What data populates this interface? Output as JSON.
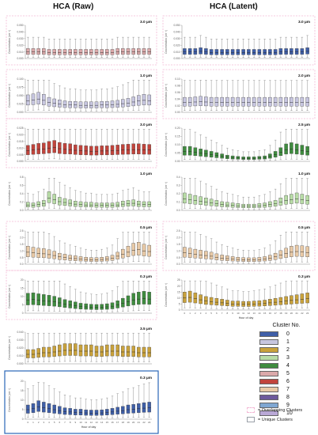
{
  "titles": {
    "left": "HCA (Raw)",
    "right": "HCA (Latent)"
  },
  "legend": {
    "title": "Cluster No.",
    "items": [
      {
        "label": "0",
        "color": "#3f5fa8"
      },
      {
        "label": "1",
        "color": "#c7c6e0"
      },
      {
        "label": "2",
        "color": "#c9a23c"
      },
      {
        "label": "3",
        "color": "#b8dca6"
      },
      {
        "label": "4",
        "color": "#3f8c3f"
      },
      {
        "label": "5",
        "color": "#dba9aa"
      },
      {
        "label": "6",
        "color": "#c1443c"
      },
      {
        "label": "7",
        "color": "#e8c9a6"
      },
      {
        "label": "8",
        "color": "#6d5a9c"
      },
      {
        "label": "9",
        "color": "#7fa7d2"
      },
      {
        "label": "10",
        "color": "#b9a8d6"
      }
    ]
  },
  "key": {
    "overlapping": "= Overlapping Clusters",
    "unique": "= Unique Clusters"
  },
  "chart_data": [
    {
      "type": "box",
      "panel": "raw-1",
      "title": "3.0 µm",
      "color": "#dba9aa",
      "ylabel": "Concentration (cm⁻³)",
      "ylim": [
        0,
        0.06
      ],
      "yticks": [
        "0.000",
        "0.010",
        "0.020",
        "0.030",
        "0.040",
        "0.050"
      ],
      "x": [
        0,
        1,
        2,
        3,
        4,
        5,
        6,
        7,
        8,
        9,
        10,
        11,
        12,
        13,
        14,
        15,
        16,
        17,
        18,
        19,
        20,
        21,
        22,
        23
      ],
      "medians": [
        0.012,
        0.012,
        0.012,
        0.012,
        0.011,
        0.011,
        0.011,
        0.011,
        0.011,
        0.011,
        0.011,
        0.011,
        0.011,
        0.011,
        0.011,
        0.011,
        0.011,
        0.012,
        0.012,
        0.012,
        0.012,
        0.012,
        0.012,
        0.012
      ]
    },
    {
      "type": "box",
      "panel": "raw-2",
      "title": "1.0 µm",
      "color": "#c7c6e0",
      "ylabel": "Concentration (cm⁻³)",
      "ylim": [
        0,
        0.1
      ],
      "yticks": [
        "0.000",
        "0.025",
        "0.050",
        "0.075",
        "0.100"
      ],
      "x": [
        0,
        1,
        2,
        3,
        4,
        5,
        6,
        7,
        8,
        9,
        10,
        11,
        12,
        13,
        14,
        15,
        16,
        17,
        18,
        19,
        20,
        21,
        22,
        23
      ],
      "medians": [
        0.035,
        0.037,
        0.04,
        0.036,
        0.03,
        0.027,
        0.025,
        0.023,
        0.022,
        0.022,
        0.021,
        0.021,
        0.021,
        0.021,
        0.022,
        0.022,
        0.023,
        0.024,
        0.026,
        0.028,
        0.031,
        0.034,
        0.036,
        0.035
      ]
    },
    {
      "type": "box",
      "panel": "raw-3",
      "title": "3.0 µm",
      "color": "#c1443c",
      "ylabel": "Concentration (cm⁻³)",
      "ylim": [
        0,
        0.025
      ],
      "yticks": [
        "0.000",
        "0.005",
        "0.010",
        "0.015",
        "0.020",
        "0.025"
      ],
      "x": [
        0,
        1,
        2,
        3,
        4,
        5,
        6,
        7,
        8,
        9,
        10,
        11,
        12,
        13,
        14,
        15,
        16,
        17,
        18,
        19,
        20,
        21,
        22,
        23
      ],
      "medians": [
        0.008,
        0.0085,
        0.009,
        0.0092,
        0.01,
        0.0105,
        0.0095,
        0.009,
        0.0088,
        0.0083,
        0.008,
        0.0078,
        0.0076,
        0.0076,
        0.0078,
        0.0078,
        0.008,
        0.0082,
        0.0085,
        0.0086,
        0.0088,
        0.0088,
        0.0086,
        0.0085
      ]
    },
    {
      "type": "box",
      "panel": "raw-4",
      "title": "1.0 µm",
      "color": "#b8dca6",
      "ylabel": "Concentration (cm⁻³)",
      "ylim": [
        0,
        0.8
      ],
      "yticks": [
        "0.0",
        "0.2",
        "0.4",
        "0.6",
        "0.8"
      ],
      "x": [
        0,
        1,
        2,
        3,
        4,
        5,
        6,
        7,
        8,
        9,
        10,
        11,
        12,
        13,
        14,
        15,
        16,
        17,
        18,
        19,
        20,
        21,
        22,
        23
      ],
      "medians": [
        0.13,
        0.12,
        0.14,
        0.16,
        0.3,
        0.26,
        0.21,
        0.19,
        0.17,
        0.15,
        0.14,
        0.13,
        0.13,
        0.12,
        0.12,
        0.12,
        0.12,
        0.13,
        0.15,
        0.16,
        0.17,
        0.15,
        0.14,
        0.14
      ]
    },
    {
      "type": "box",
      "panel": "raw-5",
      "title": "0.5 µm",
      "color": "#e8c9a6",
      "ylabel": "Concentration (cm⁻³)",
      "ylim": [
        0,
        2.5
      ],
      "yticks": [
        "0.0",
        "0.5",
        "1.0",
        "1.5",
        "2.0",
        "2.5"
      ],
      "x": [
        0,
        1,
        2,
        3,
        4,
        5,
        6,
        7,
        8,
        9,
        10,
        11,
        12,
        13,
        14,
        15,
        16,
        17,
        18,
        19,
        20,
        21,
        22,
        23
      ],
      "medians": [
        0.9,
        0.85,
        0.8,
        0.78,
        0.72,
        0.65,
        0.55,
        0.5,
        0.45,
        0.42,
        0.38,
        0.35,
        0.33,
        0.33,
        0.35,
        0.38,
        0.45,
        0.6,
        0.75,
        0.9,
        1.05,
        1.1,
        1.0,
        0.95
      ]
    },
    {
      "type": "box",
      "panel": "raw-6",
      "title": "0.3 µm",
      "color": "#3f8c3f",
      "ylabel": "Concentration (cm⁻³)",
      "ylim": [
        0,
        20
      ],
      "yticks": [
        "0",
        "5",
        "10",
        "15",
        "20"
      ],
      "x": [
        0,
        1,
        2,
        3,
        4,
        5,
        6,
        7,
        8,
        9,
        10,
        11,
        12,
        13,
        14,
        15,
        16,
        17,
        18,
        19,
        20,
        21,
        22,
        23
      ],
      "medians": [
        8,
        8.2,
        7.8,
        7.5,
        7.2,
        6.8,
        6.2,
        5.5,
        5,
        4.5,
        4,
        3.8,
        3.6,
        3.5,
        3.6,
        3.8,
        4.2,
        5,
        6,
        7,
        8,
        8.5,
        8.8,
        8.5
      ]
    },
    {
      "type": "box",
      "panel": "raw-7",
      "title": "3.5 µm",
      "color": "#c9a23c",
      "ylabel": "Concentration (cm⁻³)",
      "ylim": [
        0,
        0.04
      ],
      "yticks": [
        "0.000",
        "0.010",
        "0.020",
        "0.030",
        "0.040"
      ],
      "x": [
        0,
        1,
        2,
        3,
        4,
        5,
        6,
        7,
        8,
        9,
        10,
        11,
        12,
        13,
        14,
        15,
        16,
        17,
        18,
        19,
        20,
        21,
        22,
        23
      ],
      "medians": [
        0.012,
        0.012,
        0.013,
        0.014,
        0.014,
        0.015,
        0.016,
        0.017,
        0.017,
        0.017,
        0.016,
        0.016,
        0.016,
        0.015,
        0.015,
        0.016,
        0.016,
        0.016,
        0.015,
        0.015,
        0.015,
        0.014,
        0.014,
        0.014
      ]
    },
    {
      "type": "box",
      "panel": "raw-8",
      "title": "0.3 µm",
      "color": "#3f5fa8",
      "ylabel": "Concentration (cm⁻³)",
      "xlabel": "Hour of day",
      "ylim": [
        0,
        20
      ],
      "yticks": [
        "0",
        "5",
        "10",
        "15",
        "20"
      ],
      "x": [
        0,
        1,
        2,
        3,
        4,
        5,
        6,
        7,
        8,
        9,
        10,
        11,
        12,
        13,
        14,
        15,
        16,
        17,
        18,
        19,
        20,
        21,
        22,
        23
      ],
      "medians": [
        5,
        5.5,
        6.5,
        6,
        5.5,
        5,
        4.5,
        4,
        3.8,
        3.5,
        3.5,
        3.3,
        3.2,
        3.2,
        3.3,
        3.5,
        3.8,
        4.2,
        4.5,
        5,
        5.2,
        5.5,
        5.8,
        6
      ]
    },
    {
      "type": "box",
      "panel": "lat-1",
      "title": "3.0 µm",
      "color": "#3f5fa8",
      "ylabel": "Concentration (cm⁻³)",
      "ylim": [
        0,
        0.06
      ],
      "yticks": [
        "0.000",
        "0.010",
        "0.020",
        "0.030",
        "0.040",
        "0.050"
      ],
      "x": [
        0,
        1,
        2,
        3,
        4,
        5,
        6,
        7,
        8,
        9,
        10,
        11,
        12,
        13,
        14,
        15,
        16,
        17,
        18,
        19,
        20,
        21,
        22,
        23
      ],
      "medians": [
        0.012,
        0.012,
        0.012,
        0.013,
        0.012,
        0.011,
        0.011,
        0.011,
        0.011,
        0.011,
        0.011,
        0.011,
        0.011,
        0.011,
        0.011,
        0.011,
        0.011,
        0.011,
        0.012,
        0.012,
        0.012,
        0.012,
        0.012,
        0.013
      ]
    },
    {
      "type": "box",
      "panel": "lat-2",
      "title": "2.0 µm",
      "color": "#c7c6e0",
      "ylabel": "Concentration (cm⁻³)",
      "ylim": [
        0,
        0.1
      ],
      "yticks": [
        "0.00",
        "0.02",
        "0.04",
        "0.06",
        "0.08",
        "0.10"
      ],
      "x": [
        0,
        1,
        2,
        3,
        4,
        5,
        6,
        7,
        8,
        9,
        10,
        11,
        12,
        13,
        14,
        15,
        16,
        17,
        18,
        19,
        20,
        21,
        22,
        23
      ],
      "medians": [
        0.03,
        0.03,
        0.031,
        0.032,
        0.031,
        0.03,
        0.03,
        0.03,
        0.03,
        0.03,
        0.03,
        0.03,
        0.03,
        0.03,
        0.03,
        0.03,
        0.03,
        0.03,
        0.03,
        0.03,
        0.03,
        0.03,
        0.03,
        0.03
      ]
    },
    {
      "type": "box",
      "panel": "lat-3",
      "title": "2.5 µm",
      "color": "#3f8c3f",
      "ylabel": "Concentration (cm⁻³)",
      "ylim": [
        0,
        0.2
      ],
      "yticks": [
        "0.00",
        "0.05",
        "0.10",
        "0.15",
        "0.20"
      ],
      "x": [
        0,
        1,
        2,
        3,
        4,
        5,
        6,
        7,
        8,
        9,
        10,
        11,
        12,
        13,
        14,
        15,
        16,
        17,
        18,
        19,
        20,
        21,
        22,
        23
      ],
      "medians": [
        0.06,
        0.06,
        0.055,
        0.05,
        0.045,
        0.04,
        0.035,
        0.03,
        0.025,
        0.022,
        0.02,
        0.018,
        0.018,
        0.018,
        0.02,
        0.022,
        0.03,
        0.04,
        0.055,
        0.07,
        0.075,
        0.07,
        0.065,
        0.06
      ]
    },
    {
      "type": "box",
      "panel": "lat-4",
      "title": "1.0 µm",
      "color": "#b8dca6",
      "ylabel": "Concentration (cm⁻³)",
      "ylim": [
        0,
        0.4
      ],
      "yticks": [
        "0.0",
        "0.1",
        "0.2",
        "0.3",
        "0.4"
      ],
      "x": [
        0,
        1,
        2,
        3,
        4,
        5,
        6,
        7,
        8,
        9,
        10,
        11,
        12,
        13,
        14,
        15,
        16,
        17,
        18,
        19,
        20,
        21,
        22,
        23
      ],
      "medians": [
        0.14,
        0.13,
        0.12,
        0.11,
        0.1,
        0.09,
        0.08,
        0.07,
        0.065,
        0.06,
        0.055,
        0.05,
        0.05,
        0.05,
        0.055,
        0.06,
        0.07,
        0.08,
        0.1,
        0.12,
        0.13,
        0.14,
        0.13,
        0.12
      ]
    },
    {
      "type": "box",
      "panel": "lat-5",
      "title": "0.5 µm",
      "color": "#e8c9a6",
      "ylabel": "Concentration (cm⁻³)",
      "ylim": [
        0,
        2.5
      ],
      "yticks": [
        "0.0",
        "0.5",
        "1.0",
        "1.5",
        "2.0",
        "2.5"
      ],
      "x": [
        0,
        1,
        2,
        3,
        4,
        5,
        6,
        7,
        8,
        9,
        10,
        11,
        12,
        13,
        14,
        15,
        16,
        17,
        18,
        19,
        20,
        21,
        22,
        23
      ],
      "medians": [
        0.85,
        0.8,
        0.75,
        0.7,
        0.65,
        0.6,
        0.52,
        0.46,
        0.42,
        0.38,
        0.35,
        0.33,
        0.32,
        0.32,
        0.34,
        0.38,
        0.45,
        0.55,
        0.68,
        0.8,
        0.9,
        0.95,
        0.92,
        0.88
      ]
    },
    {
      "type": "box",
      "panel": "lat-6",
      "title": "0.3 µm",
      "color": "#c9a23c",
      "ylabel": "Concentration (cm⁻³)",
      "xlabel": "Hour of day",
      "ylim": [
        0,
        25
      ],
      "yticks": [
        "0",
        "5",
        "10",
        "15",
        "20",
        "25"
      ],
      "x": [
        0,
        1,
        2,
        3,
        4,
        5,
        6,
        7,
        8,
        9,
        10,
        11,
        12,
        13,
        14,
        15,
        16,
        17,
        18,
        19,
        20,
        21,
        22,
        23
      ],
      "medians": [
        10,
        10.5,
        9.5,
        8.5,
        7.5,
        7,
        6.5,
        6,
        5.5,
        5,
        5,
        4.8,
        4.8,
        5,
        5.2,
        5.5,
        6,
        6.5,
        7,
        7.5,
        8,
        8.5,
        9,
        9.5
      ]
    }
  ]
}
